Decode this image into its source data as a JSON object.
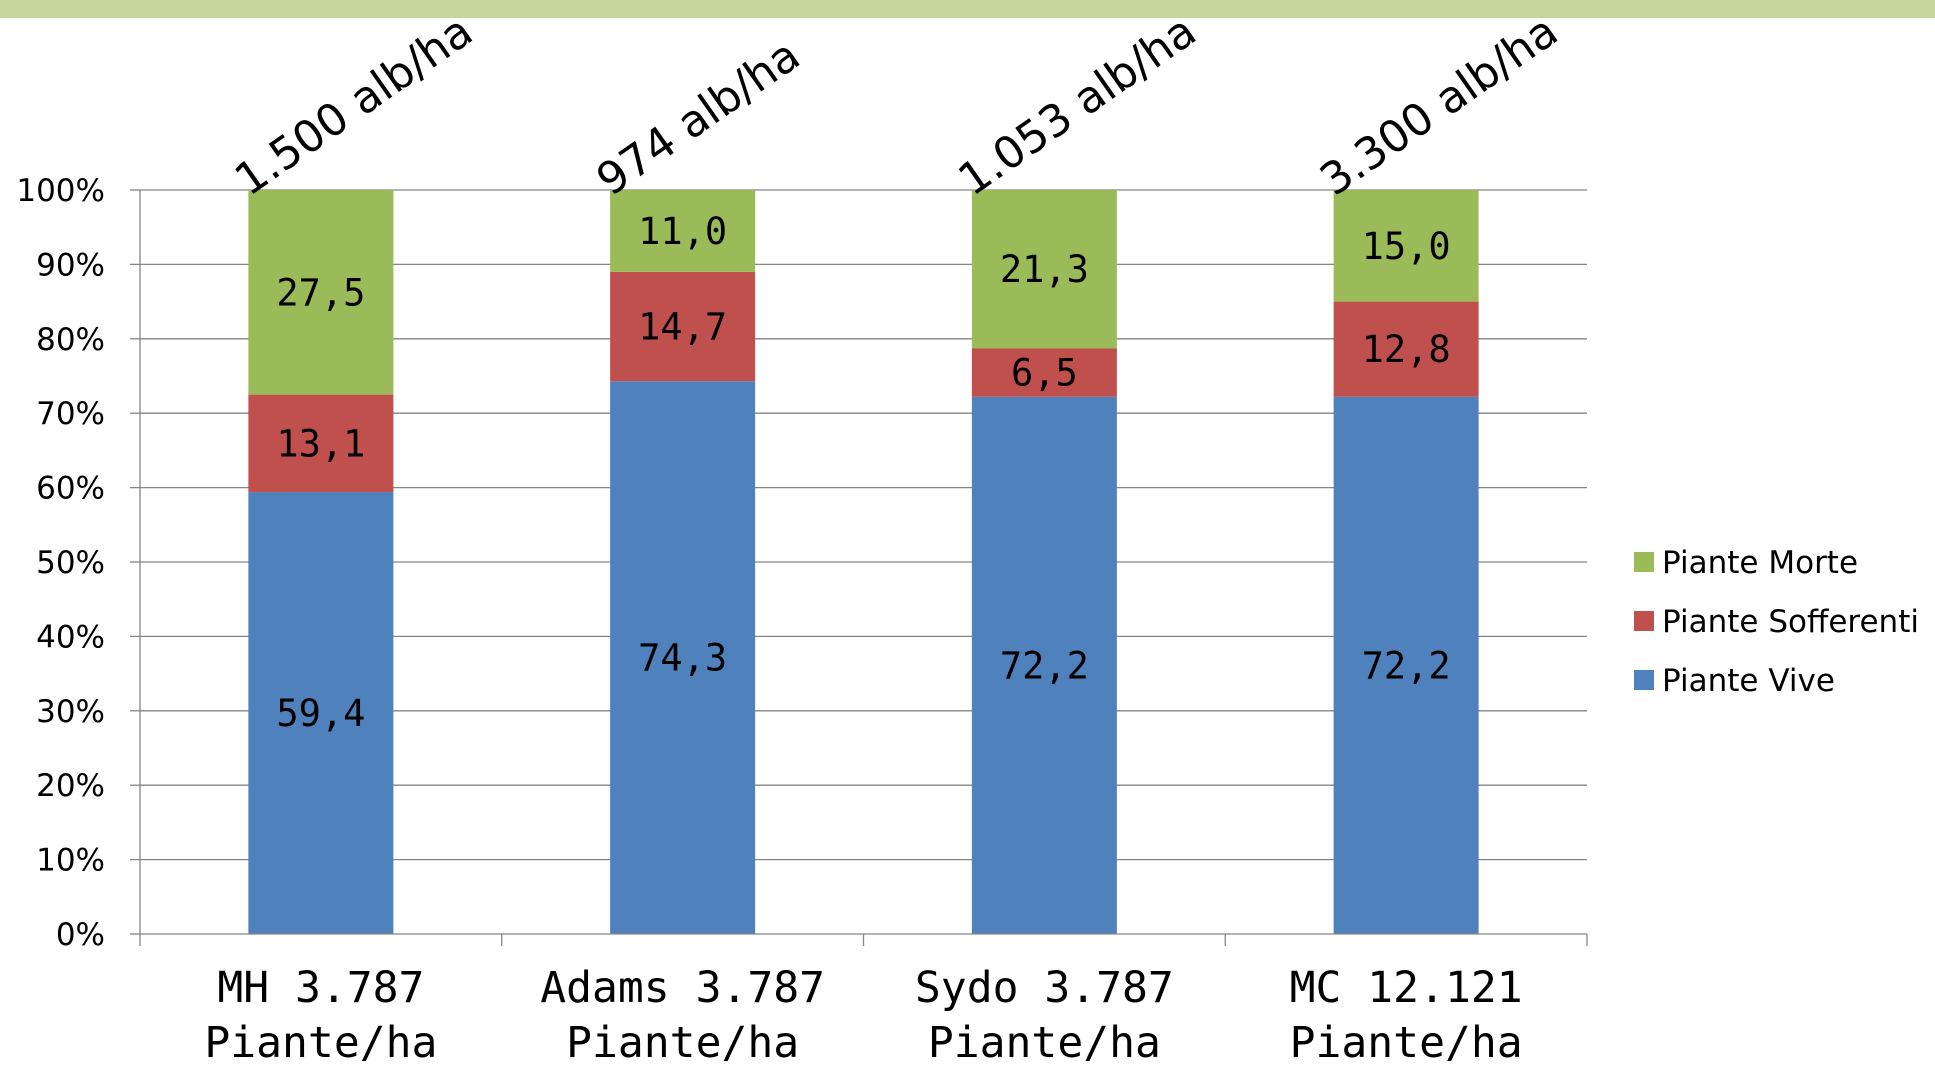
{
  "theme": {
    "band_color": "#c3d69b"
  },
  "chart_data": {
    "type": "bar",
    "stacked": true,
    "categories": [
      [
        "MH 3.787",
        "Piante/ha"
      ],
      [
        "Adams 3.787",
        "Piante/ha"
      ],
      [
        "Sydo 3.787",
        "Piante/ha"
      ],
      [
        "MC 12.121",
        "Piante/ha"
      ]
    ],
    "series": [
      {
        "name": "Piante Vive",
        "color": "#4f81bd",
        "values": [
          59.4,
          74.3,
          72.2,
          72.2
        ],
        "labels": [
          "59,4",
          "74,3",
          "72,2",
          "72,2"
        ]
      },
      {
        "name": "Piante Sofferenti",
        "color": "#c0504d",
        "values": [
          13.1,
          14.7,
          6.5,
          12.8
        ],
        "labels": [
          "13,1",
          "14,7",
          "6,5",
          "12,8"
        ]
      },
      {
        "name": "Piante Morte",
        "color": "#9bbb59",
        "values": [
          27.5,
          11.0,
          21.3,
          15.0
        ],
        "labels": [
          "27,5",
          "11,0",
          "21,3",
          "15,0"
        ]
      }
    ],
    "normalized_percent": true,
    "ylim": [
      0,
      100
    ],
    "yticks": [
      "0%",
      "10%",
      "20%",
      "30%",
      "40%",
      "50%",
      "60%",
      "70%",
      "80%",
      "90%",
      "100%"
    ],
    "annotations": [
      "1.500 alb/ha",
      "974 alb/ha",
      "1.053 alb/ha",
      "3.300 alb/ha"
    ],
    "legend": {
      "position": "right",
      "order": [
        "Piante Morte",
        "Piante Sofferenti",
        "Piante Vive"
      ]
    },
    "grid": true,
    "title": "",
    "xlabel": "",
    "ylabel": ""
  }
}
